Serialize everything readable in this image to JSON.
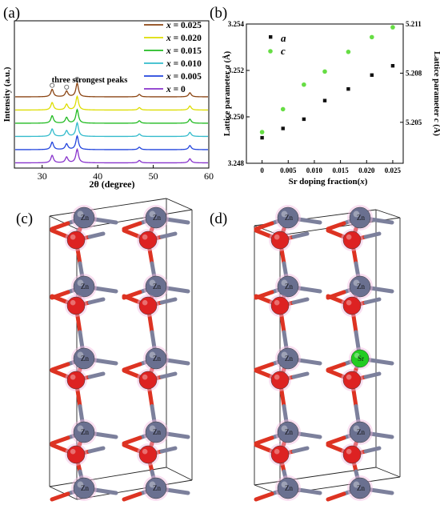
{
  "figure": {
    "panel_labels": [
      "(a)",
      "(b)",
      "(c)",
      "(d)"
    ],
    "colors": {
      "dark_brown": "#8b4513",
      "yellow": "#dddd00",
      "green": "#22bb22",
      "cyan": "#33bbcc",
      "blue": "#2244dd",
      "purple": "#8833cc",
      "black_marker": "#111111",
      "green_marker": "#66dd44",
      "zn_atom": "#6a7090",
      "o_atom": "#dd2222",
      "sr_atom": "#22cc22",
      "bond_zn": "#7c809c",
      "bond_o": "#dd3322"
    },
    "atom_labels": {
      "zn": "Zn",
      "sr": "Sr"
    }
  },
  "chart_data": [
    {
      "type": "line",
      "panel": "(a)",
      "xlabel": "2θ (degree)",
      "ylabel": "Intensity (a.u.)",
      "xlim": [
        25,
        60
      ],
      "xticks": [
        30,
        40,
        50,
        60
      ],
      "annotation": "three strongest peaks",
      "peak_markers": [
        31.8,
        34.4,
        36.3
      ],
      "peak_positions": [
        31.8,
        34.4,
        36.3,
        47.5,
        56.6
      ],
      "peak_heights": [
        0.55,
        0.42,
        1.0,
        0.18,
        0.3
      ],
      "series": [
        {
          "name": "x = 0.025",
          "x_value": "0.025",
          "color": "#8b4513"
        },
        {
          "name": "x = 0.020",
          "x_value": "0.020",
          "color": "#dddd00"
        },
        {
          "name": "x = 0.015",
          "x_value": "0.015",
          "color": "#22bb22"
        },
        {
          "name": "x = 0.010",
          "x_value": "0.010",
          "color": "#33bbcc"
        },
        {
          "name": "x = 0.005",
          "x_value": "0.005",
          "color": "#2244dd"
        },
        {
          "name": "x = 0",
          "x_value": "0",
          "color": "#8833cc"
        }
      ]
    },
    {
      "type": "scatter",
      "panel": "(b)",
      "xlabel": "Sr doping fraction(x)",
      "ylabel_left": "Lattice parameter a (Å)",
      "ylabel_right": "Lattice parameter c (Å)",
      "xlim": [
        -0.003,
        0.027
      ],
      "xticks": [
        "0",
        "0.005",
        "0.010",
        "0.015",
        "0.020",
        "0.025"
      ],
      "xtick_values": [
        0,
        0.005,
        0.01,
        0.015,
        0.02,
        0.025
      ],
      "ylim_left": [
        3.248,
        3.254
      ],
      "yticks_left": [
        "3.248",
        "3.250",
        "3.252",
        "3.254"
      ],
      "ylim_right": [
        5.2025,
        5.211
      ],
      "yticks_right": [
        "5.205",
        "5.208",
        "5.211"
      ],
      "legend": [
        {
          "label": "a"
        },
        {
          "label": "c"
        }
      ],
      "series": [
        {
          "name": "a",
          "axis": "left",
          "x": [
            0,
            0.004,
            0.008,
            0.012,
            0.0165,
            0.021,
            0.025
          ],
          "y": [
            3.2491,
            3.2495,
            3.2499,
            3.2507,
            3.2512,
            3.2518,
            3.2522
          ]
        },
        {
          "name": "c",
          "axis": "right",
          "x": [
            0,
            0.004,
            0.008,
            0.012,
            0.0165,
            0.021,
            0.025
          ],
          "y": [
            5.2044,
            5.2058,
            5.2073,
            5.2081,
            5.2093,
            5.2102,
            5.2108
          ]
        }
      ]
    }
  ]
}
